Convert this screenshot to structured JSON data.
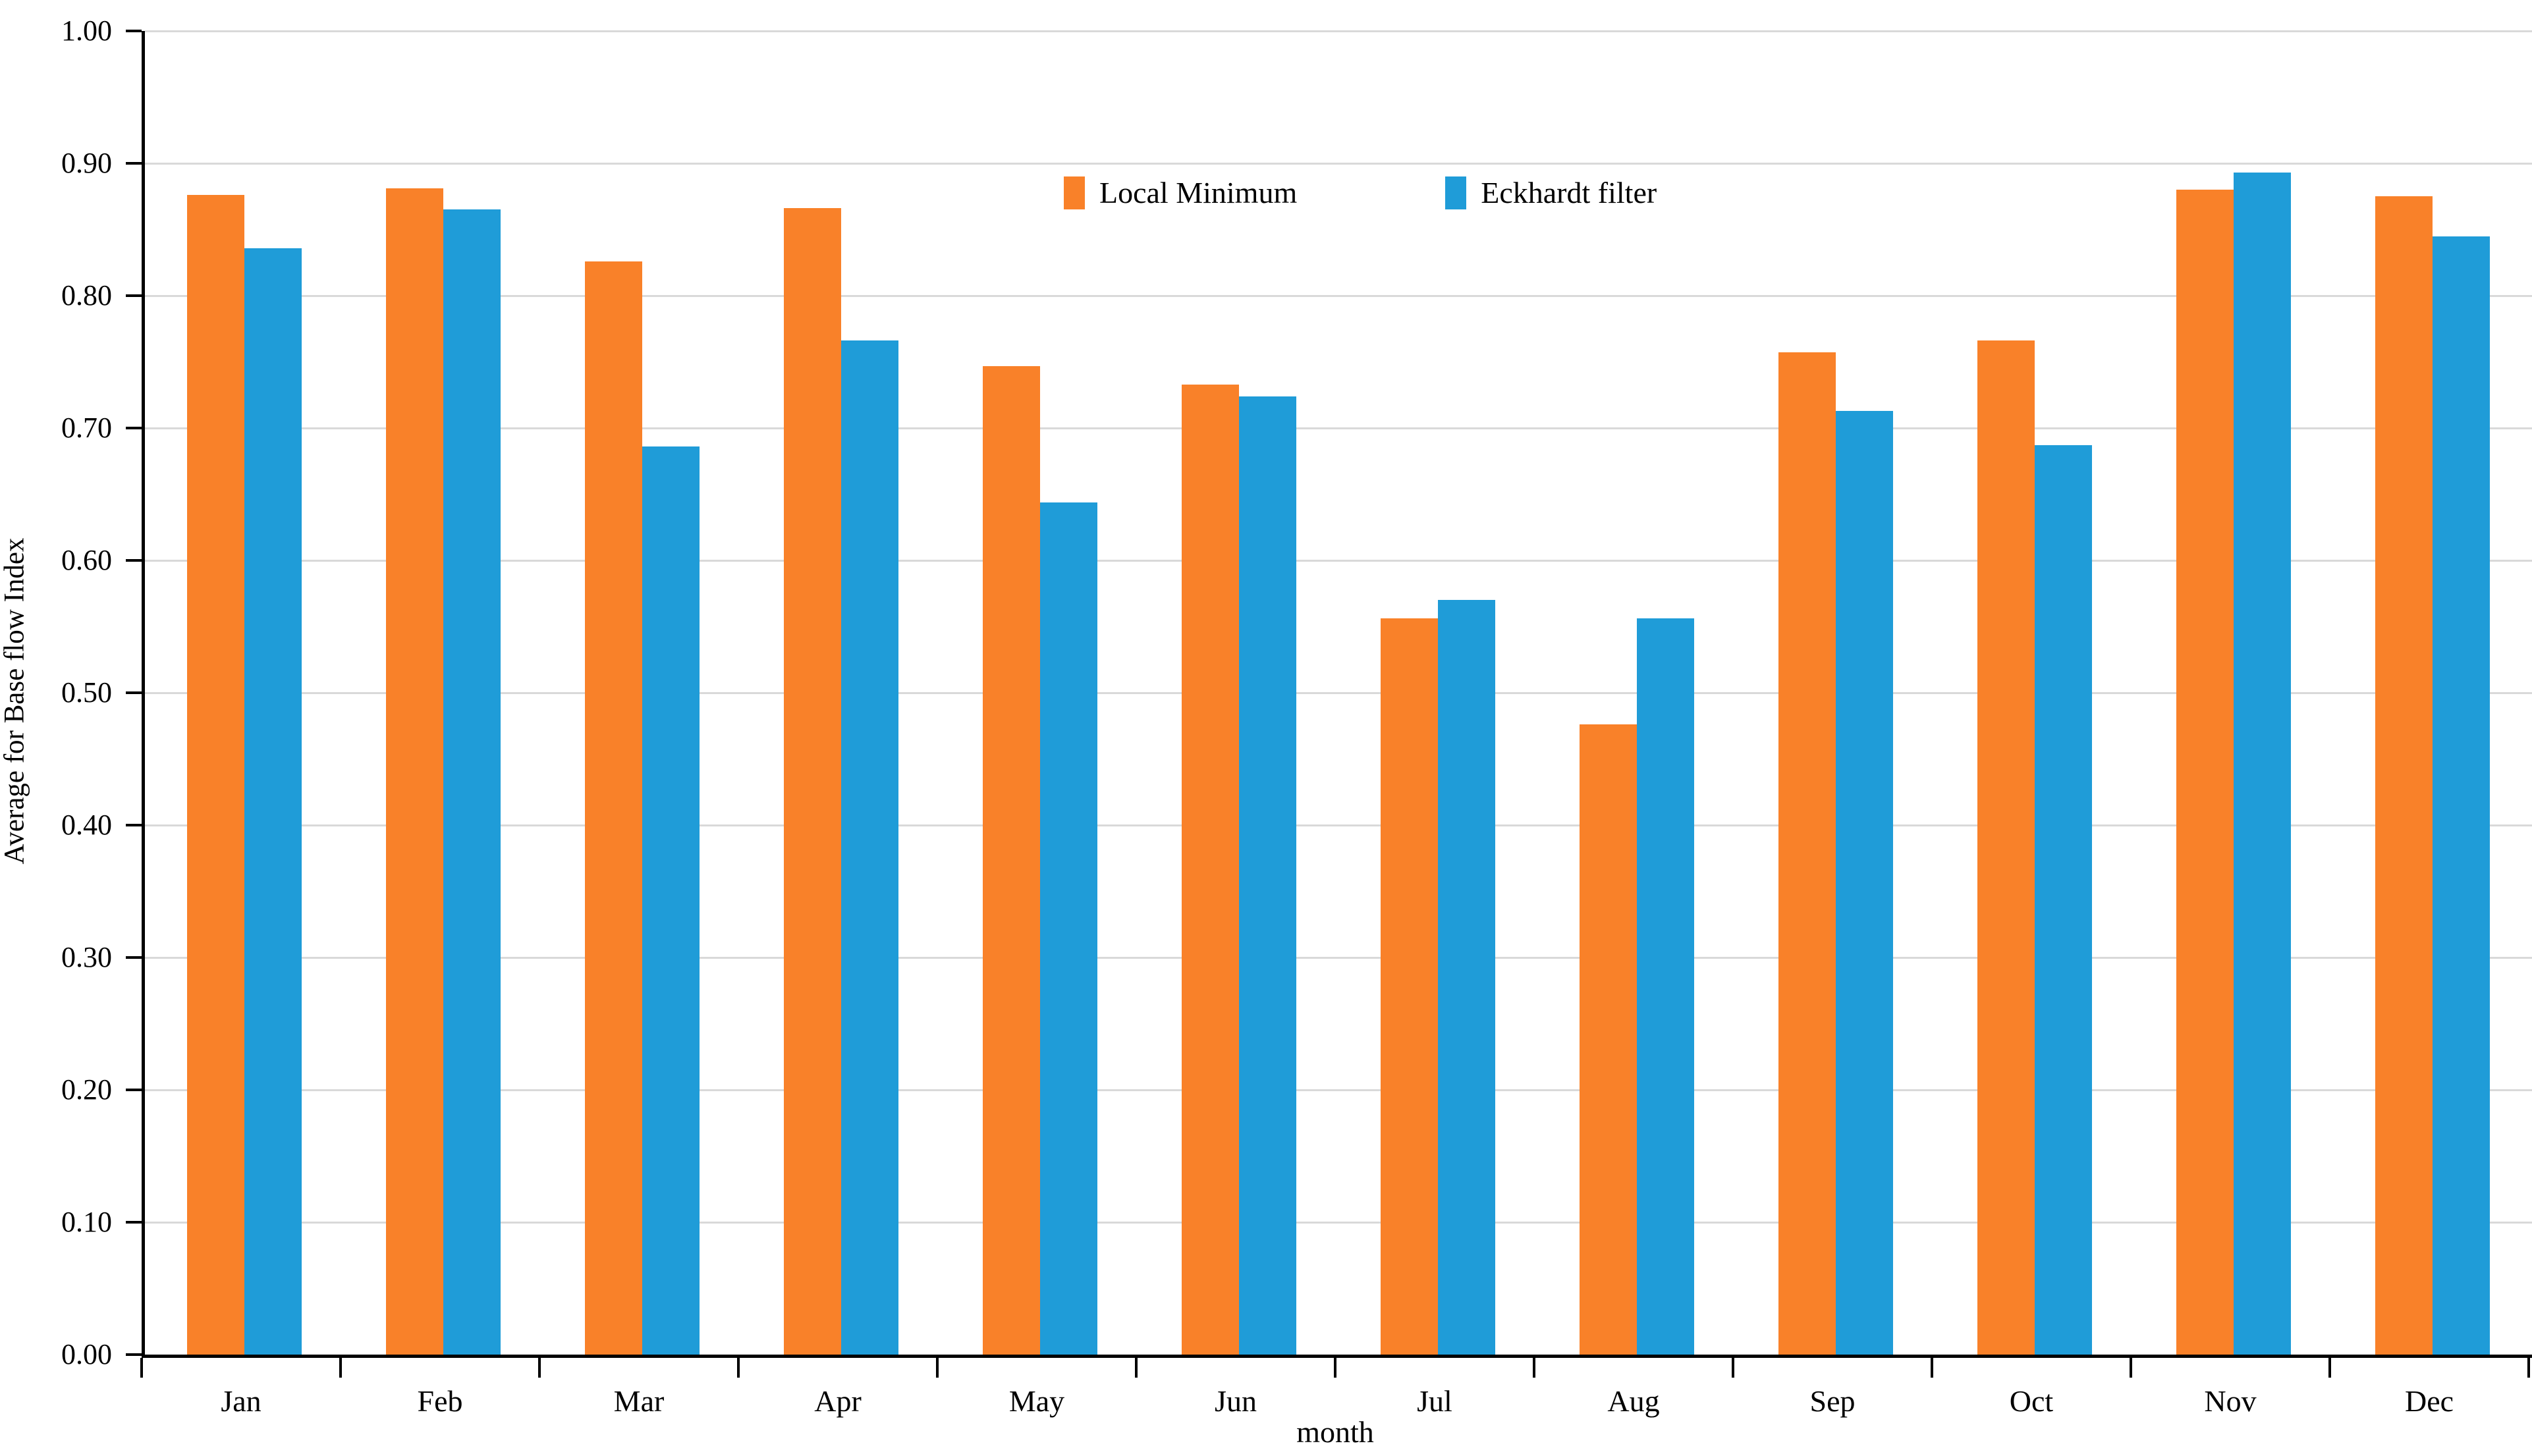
{
  "chart_data": {
    "type": "bar",
    "title": "",
    "xlabel": "month",
    "ylabel": "Average for Base flow Index",
    "categories": [
      "Jan",
      "Feb",
      "Mar",
      "Apr",
      "May",
      "Jun",
      "Jul",
      "Aug",
      "Sep",
      "Oct",
      "Nov",
      "Dec"
    ],
    "series": [
      {
        "name": "Local Minimum",
        "color": "#F98129",
        "values": [
          0.876,
          0.881,
          0.826,
          0.866,
          0.747,
          0.733,
          0.556,
          0.476,
          0.757,
          0.766,
          0.88,
          0.875
        ]
      },
      {
        "name": "Eckhardt filter",
        "color": "#1F9CD8",
        "values": [
          0.836,
          0.865,
          0.686,
          0.766,
          0.644,
          0.724,
          0.57,
          0.556,
          0.713,
          0.687,
          0.893,
          0.845
        ]
      }
    ],
    "ylim": [
      0.0,
      1.0
    ],
    "ytick_step": 0.1,
    "ytick_decimals": 2,
    "grid": true,
    "gridline_color": "#d9d9d9",
    "axis_color": "#000000",
    "legend_position": "top-center"
  }
}
